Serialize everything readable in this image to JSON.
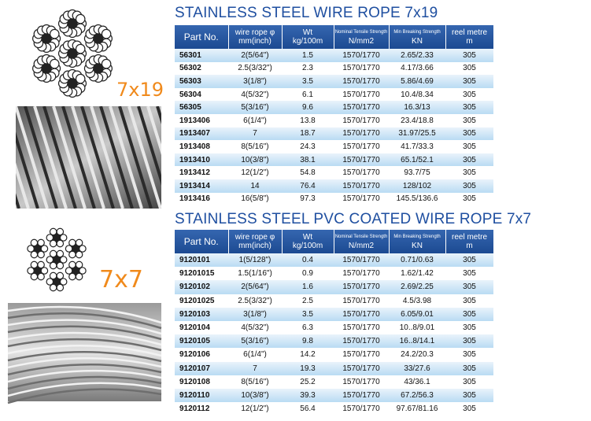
{
  "sections": [
    {
      "title": "STAINLESS STEEL WIRE ROPE 7x19",
      "label": "7x19",
      "headers": [
        [
          "Part No."
        ],
        [
          "wire rope φ",
          "mm(inch)"
        ],
        [
          "Wt",
          "kg/100m"
        ],
        [
          "Nominal Tensile Strength",
          "N/mm2"
        ],
        [
          "Min Breaking Strength",
          "KN"
        ],
        [
          "reel metre",
          "m"
        ]
      ],
      "rows": [
        [
          "56301",
          "2(5/64\")",
          "1.5",
          "1570/1770",
          "2.65/2.33",
          "305"
        ],
        [
          "56302",
          "2.5(3/32\")",
          "2.3",
          "1570/1770",
          "4.17/3.66",
          "305"
        ],
        [
          "56303",
          "3(1/8\")",
          "3.5",
          "1570/1770",
          "5.86/4.69",
          "305"
        ],
        [
          "56304",
          "4(5/32\")",
          "6.1",
          "1570/1770",
          "10.4/8.34",
          "305"
        ],
        [
          "56305",
          "5(3/16\")",
          "9.6",
          "1570/1770",
          "16.3/13",
          "305"
        ],
        [
          "1913406",
          "6(1/4\")",
          "13.8",
          "1570/1770",
          "23.4/18.8",
          "305"
        ],
        [
          "1913407",
          "7",
          "18.7",
          "1570/1770",
          "31.97/25.5",
          "305"
        ],
        [
          "1913408",
          "8(5/16\")",
          "24.3",
          "1570/1770",
          "41.7/33.3",
          "305"
        ],
        [
          "1913410",
          "10(3/8\")",
          "38.1",
          "1570/1770",
          "65.1/52.1",
          "305"
        ],
        [
          "1913412",
          "12(1/2\")",
          "54.8",
          "1570/1770",
          "93.7/75",
          "305"
        ],
        [
          "1913414",
          "14",
          "76.4",
          "1570/1770",
          "128/102",
          "305"
        ],
        [
          "1913416",
          "16(5/8\")",
          "97.3",
          "1570/1770",
          "145.5/136.6",
          "305"
        ]
      ]
    },
    {
      "title": "STAINLESS STEEL PVC COATED WIRE ROPE 7x7",
      "label": "7x7",
      "headers": [
        [
          "Part No."
        ],
        [
          "wire rope φ",
          "mm(inch)"
        ],
        [
          "Wt",
          "kg/100m"
        ],
        [
          "Nominal Tensile Strength",
          "N/mm2"
        ],
        [
          "Min Breaking Strength",
          "KN"
        ],
        [
          "reel metre",
          "m"
        ]
      ],
      "rows": [
        [
          "9120101",
          "1(5/128\")",
          "0.4",
          "1570/1770",
          "0.71/0.63",
          "305"
        ],
        [
          "91201015",
          "1.5(1/16\")",
          "0.9",
          "1570/1770",
          "1.62/1.42",
          "305"
        ],
        [
          "9120102",
          "2(5/64\")",
          "1.6",
          "1570/1770",
          "2.69/2.25",
          "305"
        ],
        [
          "91201025",
          "2.5(3/32\")",
          "2.5",
          "1570/1770",
          "4.5/3.98",
          "305"
        ],
        [
          "9120103",
          "3(1/8\")",
          "3.5",
          "1570/1770",
          "6.05/9.01",
          "305"
        ],
        [
          "9120104",
          "4(5/32\")",
          "6.3",
          "1570/1770",
          "10..8/9.01",
          "305"
        ],
        [
          "9120105",
          "5(3/16\")",
          "9.8",
          "1570/1770",
          "16..8/14.1",
          "305"
        ],
        [
          "9120106",
          "6(1/4\")",
          "14.2",
          "1570/1770",
          "24.2/20.3",
          "305"
        ],
        [
          "9120107",
          "7",
          "19.3",
          "1570/1770",
          "33/27.6",
          "305"
        ],
        [
          "9120108",
          "8(5/16\")",
          "25.2",
          "1570/1770",
          "43/36.1",
          "305"
        ],
        [
          "9120110",
          "10(3/8\")",
          "39.3",
          "1570/1770",
          "67.2/56.3",
          "305"
        ],
        [
          "9120112",
          "12(1/2\")",
          "56.4",
          "1570/1770",
          "97.67/81.16",
          "305"
        ]
      ]
    }
  ]
}
